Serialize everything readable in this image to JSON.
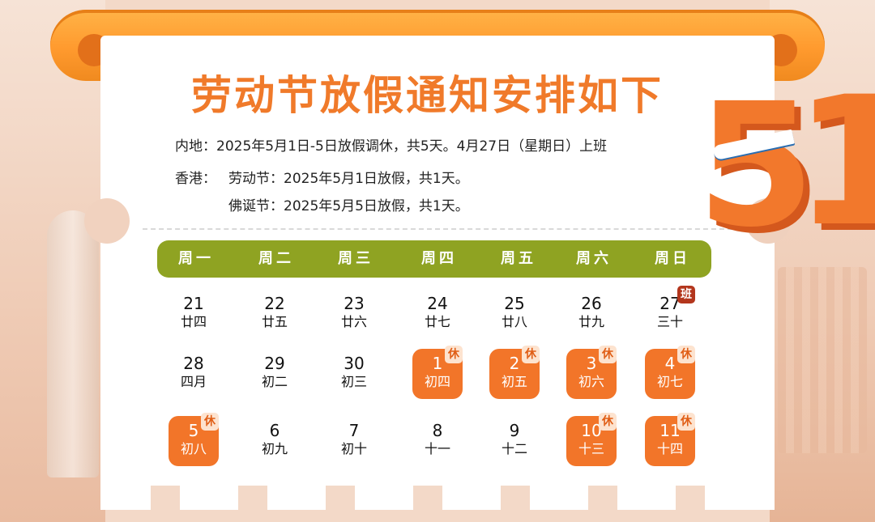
{
  "title": "劳动节放假通知安排如下",
  "notices": {
    "mainland": "内地：2025年5月1日-5日放假调休，共5天。4月27日（星期日）上班",
    "hk_label": "香港：",
    "hk_labour": "劳动节：2025年5月1日放假，共1天。",
    "hk_buddha": "佛诞节：2025年5月5日放假，共1天。"
  },
  "weekdays": [
    "周一",
    "周二",
    "周三",
    "周四",
    "周五",
    "周六",
    "周日"
  ],
  "tags": {
    "rest": "休",
    "work": "班"
  },
  "decoration": {
    "numeral_5": "5",
    "numeral_1": "1"
  },
  "colors": {
    "accent": "#f27529",
    "week_bar": "#8fa322",
    "work_tag": "#b3361d"
  },
  "calendar": [
    [
      {
        "day": "21",
        "lunar": "廿四",
        "type": "normal"
      },
      {
        "day": "22",
        "lunar": "廿五",
        "type": "normal"
      },
      {
        "day": "23",
        "lunar": "廿六",
        "type": "normal"
      },
      {
        "day": "24",
        "lunar": "廿七",
        "type": "normal"
      },
      {
        "day": "25",
        "lunar": "廿八",
        "type": "normal"
      },
      {
        "day": "26",
        "lunar": "廿九",
        "type": "normal"
      },
      {
        "day": "27",
        "lunar": "三十",
        "type": "work"
      }
    ],
    [
      {
        "day": "28",
        "lunar": "四月",
        "type": "normal"
      },
      {
        "day": "29",
        "lunar": "初二",
        "type": "normal"
      },
      {
        "day": "30",
        "lunar": "初三",
        "type": "normal"
      },
      {
        "day": "1",
        "lunar": "初四",
        "type": "holiday"
      },
      {
        "day": "2",
        "lunar": "初五",
        "type": "holiday"
      },
      {
        "day": "3",
        "lunar": "初六",
        "type": "holiday"
      },
      {
        "day": "4",
        "lunar": "初七",
        "type": "holiday"
      }
    ],
    [
      {
        "day": "5",
        "lunar": "初八",
        "type": "holiday"
      },
      {
        "day": "6",
        "lunar": "初九",
        "type": "normal"
      },
      {
        "day": "7",
        "lunar": "初十",
        "type": "normal"
      },
      {
        "day": "8",
        "lunar": "十一",
        "type": "normal"
      },
      {
        "day": "9",
        "lunar": "十二",
        "type": "normal"
      },
      {
        "day": "10",
        "lunar": "十三",
        "type": "holiday"
      },
      {
        "day": "11",
        "lunar": "十四",
        "type": "holiday"
      }
    ]
  ]
}
